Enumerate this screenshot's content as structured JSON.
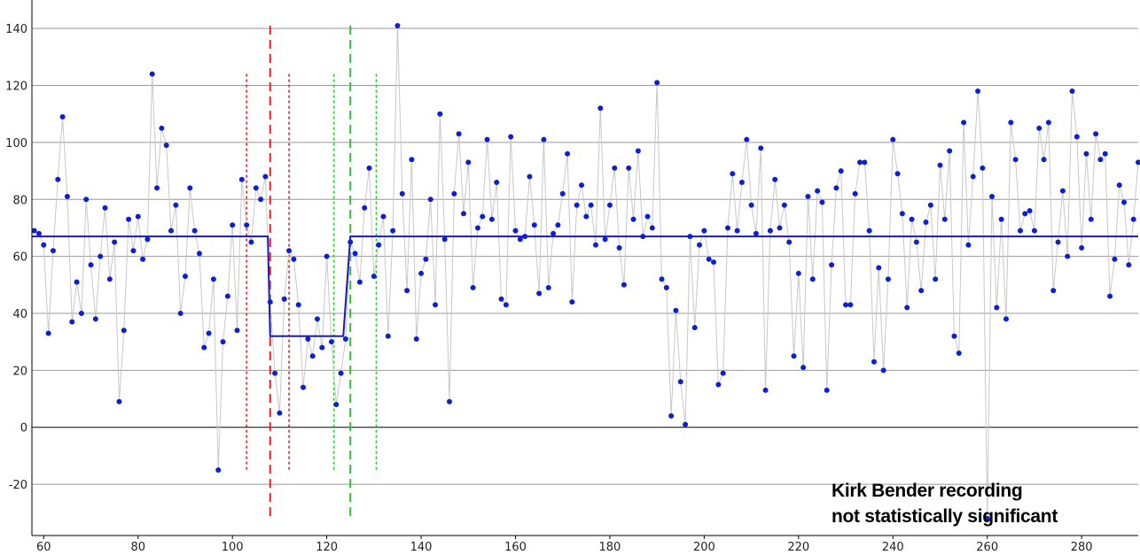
{
  "chart_data": {
    "type": "scatter",
    "title": "",
    "xlabel": "",
    "ylabel": "",
    "xlim": [
      57.5,
      292
    ],
    "ylim": [
      -38,
      150
    ],
    "grid": true,
    "x_ticks": [
      60,
      80,
      100,
      120,
      140,
      160,
      180,
      200,
      220,
      240,
      260,
      280
    ],
    "y_ticks": [
      -20,
      0,
      20,
      40,
      60,
      80,
      100,
      120,
      140
    ],
    "annotation": {
      "line1": "Kirk Bender recording",
      "line2": "not statistically significant"
    },
    "colors": {
      "points": "#0a1fd6",
      "connector": "#c8c8c8",
      "step_line": "#1b1bb0",
      "red_lines": "#e0262a",
      "green_lines": "#2cc22c",
      "grid": "#999999",
      "zero_line": "#000000"
    },
    "step_series": {
      "name": "",
      "points": [
        [
          57.5,
          67
        ],
        [
          107.5,
          67
        ],
        [
          108,
          32
        ],
        [
          123.5,
          32
        ],
        [
          125,
          67
        ],
        [
          292,
          67
        ]
      ]
    },
    "vertical_markers": [
      {
        "x": 103,
        "y_range": [
          -15,
          124
        ],
        "style": "dotted",
        "color": "red"
      },
      {
        "x": 108,
        "y_range": [
          -32,
          141
        ],
        "style": "dashed",
        "color": "red"
      },
      {
        "x": 112,
        "y_range": [
          -15,
          124
        ],
        "style": "dotted",
        "color": "red"
      },
      {
        "x": 121.5,
        "y_range": [
          -15,
          124
        ],
        "style": "dotted",
        "color": "green"
      },
      {
        "x": 125,
        "y_range": [
          -32,
          141
        ],
        "style": "dashed",
        "color": "green"
      },
      {
        "x": 130.5,
        "y_range": [
          -15,
          124
        ],
        "style": "dotted",
        "color": "green"
      }
    ],
    "series": [
      {
        "name": "",
        "x": [
          57,
          58,
          59,
          60,
          61,
          62,
          63,
          64,
          65,
          66,
          67,
          68,
          69,
          70,
          71,
          72,
          73,
          74,
          75,
          76,
          77,
          78,
          79,
          80,
          81,
          82,
          83,
          84,
          85,
          86,
          87,
          88,
          89,
          90,
          91,
          92,
          93,
          94,
          95,
          96,
          97,
          98,
          99,
          100,
          101,
          102,
          103,
          104,
          105,
          106,
          107,
          108,
          109,
          110,
          111,
          112,
          113,
          114,
          115,
          116,
          117,
          118,
          119,
          120,
          121,
          122,
          123,
          124,
          125,
          126,
          127,
          128,
          129,
          130,
          131,
          132,
          133,
          134,
          135,
          136,
          137,
          138,
          139,
          140,
          141,
          142,
          143,
          144,
          145,
          146,
          147,
          148,
          149,
          150,
          151,
          152,
          153,
          154,
          155,
          156,
          157,
          158,
          159,
          160,
          161,
          162,
          163,
          164,
          165,
          166,
          167,
          168,
          169,
          170,
          171,
          172,
          173,
          174,
          175,
          176,
          177,
          178,
          179,
          180,
          181,
          182,
          183,
          184,
          185,
          186,
          187,
          188,
          189,
          190,
          191,
          192,
          193,
          194,
          195,
          196,
          197,
          198,
          199,
          200,
          201,
          202,
          203,
          204,
          205,
          206,
          207,
          208,
          209,
          210,
          211,
          212,
          213,
          214,
          215,
          216,
          217,
          218,
          219,
          220,
          221,
          222,
          223,
          224,
          225,
          226,
          227,
          228,
          229,
          230,
          231,
          232,
          233,
          234,
          235,
          236,
          237,
          238,
          239,
          240,
          241,
          242,
          243,
          244,
          245,
          246,
          247,
          248,
          249,
          250,
          251,
          252,
          253,
          254,
          255,
          256,
          257,
          258,
          259,
          260,
          261,
          262,
          263,
          264,
          265,
          266,
          267,
          268,
          269,
          270,
          271,
          272,
          273,
          274,
          275,
          276,
          277,
          278,
          279,
          280,
          281,
          282,
          283,
          284,
          285,
          286,
          287,
          288,
          289,
          290,
          291,
          292
        ],
        "y": [
          70,
          69,
          68,
          64,
          33,
          62,
          87,
          109,
          81,
          37,
          51,
          40,
          80,
          57,
          38,
          60,
          77,
          52,
          65,
          9,
          34,
          73,
          62,
          74,
          59,
          66,
          124,
          84,
          105,
          99,
          69,
          78,
          40,
          53,
          84,
          69,
          61,
          28,
          33,
          52,
          -15,
          30,
          46,
          71,
          34,
          87,
          71,
          65,
          84,
          80,
          88,
          44,
          19,
          5,
          45,
          62,
          59,
          43,
          14,
          31,
          25,
          38,
          28,
          60,
          30,
          8,
          19,
          31,
          65,
          61,
          51,
          77,
          91,
          53,
          64,
          74,
          32,
          69,
          141,
          82,
          48,
          94,
          31,
          54,
          59,
          80,
          43,
          110,
          66,
          9,
          82,
          103,
          75,
          93,
          49,
          70,
          74,
          101,
          73,
          86,
          45,
          43,
          102,
          69,
          66,
          67,
          88,
          71,
          47,
          101,
          49,
          68,
          71,
          82,
          96,
          44,
          78,
          85,
          74,
          78,
          64,
          112,
          66,
          78,
          91,
          63,
          50,
          91,
          73,
          97,
          67,
          74,
          70,
          121,
          52,
          49,
          4,
          41,
          16,
          1,
          67,
          35,
          64,
          69,
          59,
          58,
          15,
          19,
          70,
          89,
          69,
          86,
          101,
          78,
          68,
          98,
          13,
          69,
          87,
          70,
          78,
          65,
          25,
          54,
          21,
          81,
          52,
          83,
          79,
          13,
          57,
          84,
          90,
          43,
          43,
          82,
          93,
          93,
          69,
          23,
          56,
          20,
          52,
          101,
          89,
          75,
          42,
          73,
          65,
          48,
          72,
          78,
          52,
          92,
          73,
          97,
          32,
          26,
          107,
          64,
          88,
          118,
          91,
          -32,
          81,
          42,
          73,
          38,
          107,
          94,
          69,
          75,
          76,
          69,
          105,
          94,
          107,
          48,
          65,
          83,
          60,
          118,
          102,
          63,
          96,
          73,
          103,
          94,
          96,
          46,
          59,
          85,
          79,
          57,
          73,
          93
        ]
      }
    ]
  }
}
